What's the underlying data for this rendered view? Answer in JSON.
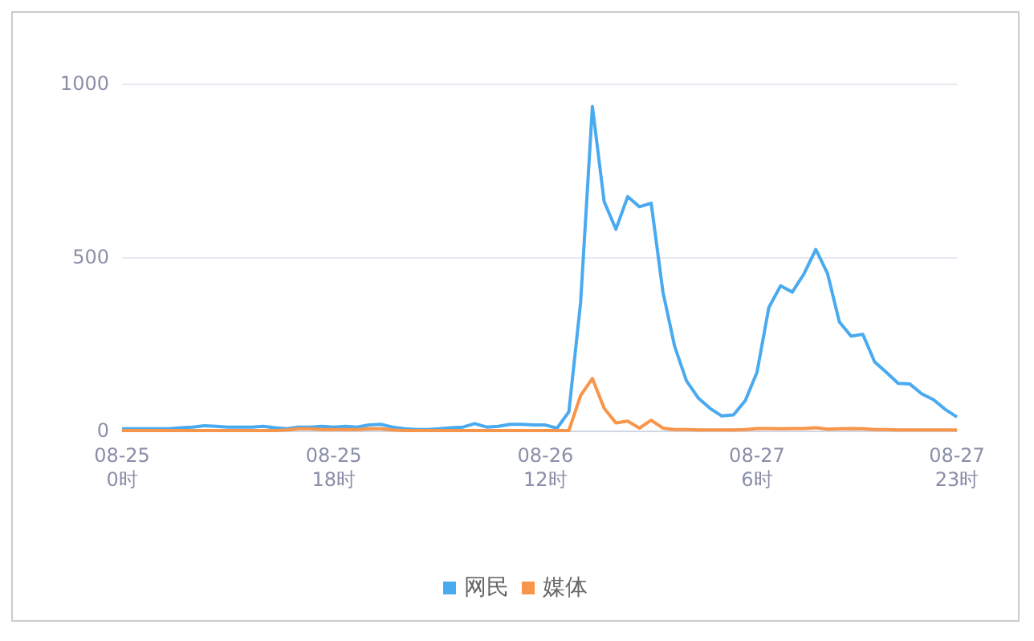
{
  "chart_data": {
    "type": "line",
    "categories": [
      "08-25\n0时",
      null,
      null,
      null,
      null,
      null,
      null,
      null,
      null,
      null,
      null,
      null,
      null,
      null,
      null,
      null,
      null,
      null,
      "08-25\n18时",
      null,
      null,
      null,
      null,
      null,
      null,
      null,
      null,
      null,
      null,
      null,
      null,
      null,
      null,
      null,
      null,
      null,
      "08-26\n12时",
      null,
      null,
      null,
      null,
      null,
      null,
      null,
      null,
      null,
      null,
      null,
      null,
      null,
      null,
      null,
      null,
      null,
      "08-27\n6时",
      null,
      null,
      null,
      null,
      null,
      null,
      null,
      null,
      null,
      null,
      null,
      null,
      null,
      null,
      null,
      null,
      "08-27\n23时"
    ],
    "series": [
      {
        "name": "网民",
        "color": "#4aaaf0",
        "values": [
          5,
          5,
          5,
          5,
          5,
          8,
          10,
          14,
          12,
          10,
          10,
          10,
          12,
          8,
          5,
          10,
          10,
          12,
          10,
          12,
          10,
          16,
          18,
          10,
          5,
          3,
          3,
          5,
          8,
          10,
          20,
          10,
          12,
          18,
          18,
          16,
          16,
          7,
          54,
          370,
          934,
          660,
          580,
          674,
          645,
          655,
          399,
          242,
          143,
          94,
          64,
          42,
          45,
          86,
          168,
          354,
          417,
          399,
          452,
          522,
          452,
          313,
          272,
          277,
          198,
          168,
          136,
          134,
          106,
          89,
          61,
          39
        ]
      },
      {
        "name": "媒体",
        "color": "#f7954a",
        "values": [
          0,
          0,
          0,
          0,
          0,
          0,
          0,
          0,
          0,
          0,
          0,
          0,
          0,
          0,
          2,
          5,
          5,
          3,
          3,
          3,
          3,
          5,
          5,
          2,
          0,
          0,
          0,
          0,
          0,
          0,
          0,
          0,
          0,
          0,
          0,
          0,
          0,
          0,
          0,
          101,
          150,
          64,
          22,
          27,
          7,
          30,
          7,
          3,
          3,
          2,
          2,
          2,
          2,
          3,
          6,
          6,
          5,
          6,
          6,
          8,
          4,
          5,
          6,
          5,
          3,
          3,
          2,
          2,
          2,
          2,
          2,
          2
        ]
      }
    ],
    "ylim": [
      0,
      1000
    ],
    "yticks": [
      0,
      500,
      1000
    ],
    "grid": "y",
    "legend": "bottom",
    "marker": "none",
    "line_style": "solid"
  }
}
